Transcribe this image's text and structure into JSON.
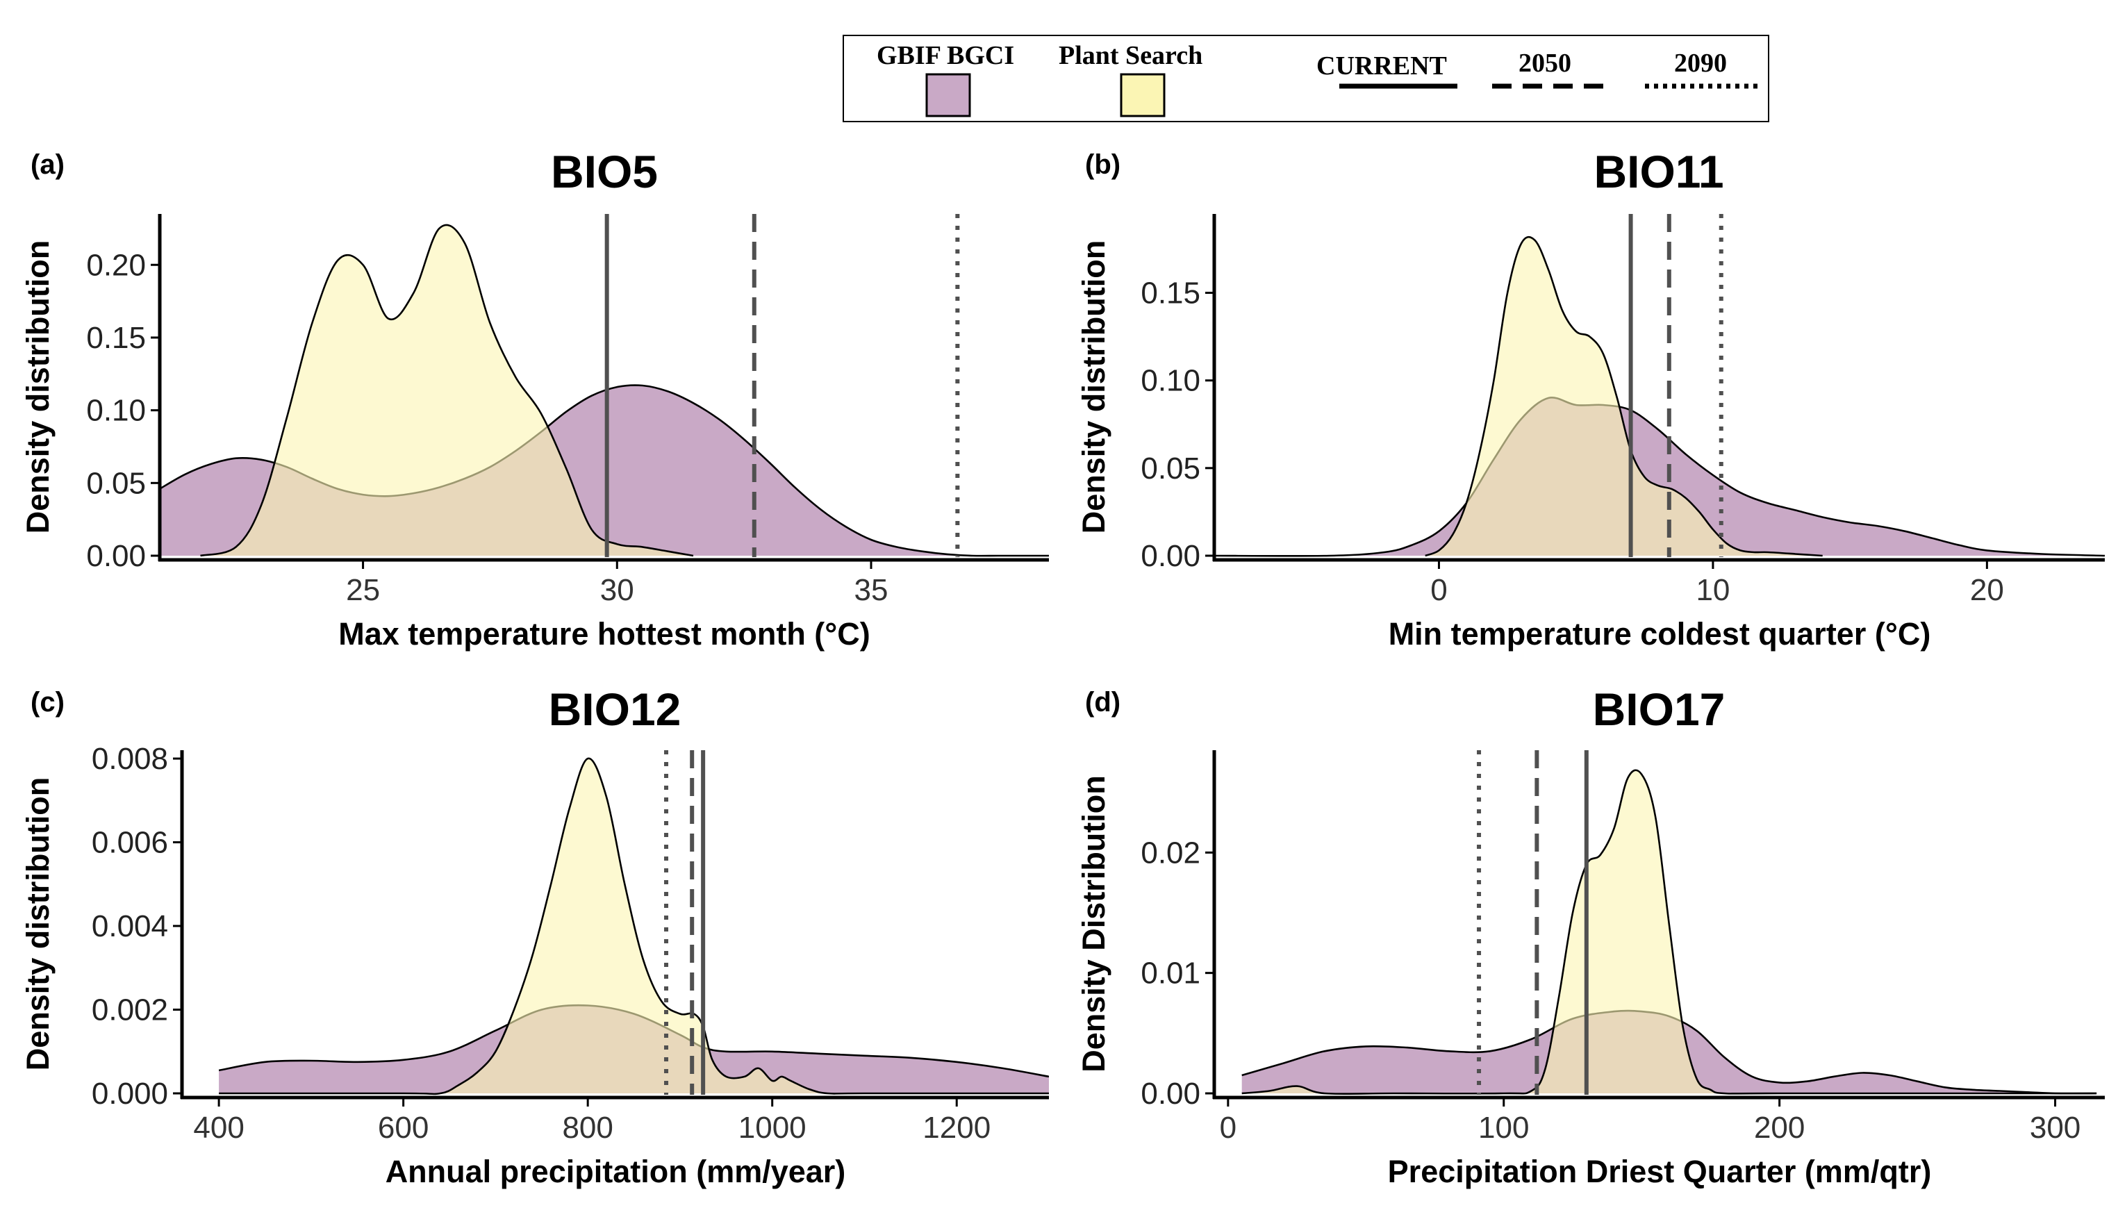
{
  "colors": {
    "gbif_fill": "#c9a9c6",
    "plant_fill": "#fbf5b4",
    "overlap_fill": "#dcbd92",
    "outline": "#000000",
    "vline": "#505050",
    "axis": "#000000"
  },
  "legend": {
    "gbif_label": "GBIF BGCI",
    "plant_label": "Plant Search",
    "current_label": "CURRENT",
    "y2050_label": "2050",
    "y2090_label": "2090"
  },
  "chart_data": [
    {
      "type": "area",
      "panel_label": "(a)",
      "title": "BIO5",
      "xlabel": "Max temperature hottest month (°C)",
      "ylabel": "Density distribution",
      "xlim": [
        21.0,
        38.5
      ],
      "ylim": [
        0,
        0.235
      ],
      "xticks": [
        25,
        30,
        35
      ],
      "xtick_labels": [
        "25",
        "30",
        "35"
      ],
      "yticks": [
        0.0,
        0.05,
        0.1,
        0.15,
        0.2
      ],
      "ytick_labels": [
        "0.00",
        "0.05",
        "0.10",
        "0.15",
        "0.20"
      ],
      "vlines": {
        "current": 29.8,
        "y2050": 32.7,
        "y2090": 36.7
      },
      "series": [
        {
          "name": "GBIF BGCI",
          "x": [
            21.0,
            21.5,
            22.0,
            22.5,
            23.0,
            23.5,
            24.0,
            24.5,
            25.0,
            25.5,
            26.0,
            26.5,
            27.0,
            27.5,
            28.0,
            28.5,
            29.0,
            29.5,
            30.0,
            30.5,
            31.0,
            31.5,
            32.0,
            32.5,
            33.0,
            33.5,
            34.0,
            34.5,
            35.0,
            35.5,
            36.0,
            36.5,
            37.0,
            37.5,
            38.0,
            38.5
          ],
          "y": [
            0.046,
            0.056,
            0.063,
            0.067,
            0.066,
            0.061,
            0.053,
            0.046,
            0.042,
            0.041,
            0.043,
            0.047,
            0.053,
            0.061,
            0.072,
            0.085,
            0.099,
            0.11,
            0.116,
            0.117,
            0.113,
            0.105,
            0.094,
            0.08,
            0.064,
            0.047,
            0.032,
            0.02,
            0.011,
            0.006,
            0.003,
            0.001,
            0.0,
            0.0,
            0.0,
            0.0
          ]
        },
        {
          "name": "Plant Search",
          "x": [
            21.8,
            22.5,
            23.0,
            23.5,
            24.0,
            24.5,
            25.0,
            25.5,
            26.0,
            26.5,
            27.0,
            27.5,
            28.0,
            28.5,
            29.0,
            29.5,
            30.0,
            30.5,
            31.0,
            31.5
          ],
          "y": [
            0.0,
            0.006,
            0.035,
            0.095,
            0.16,
            0.203,
            0.2,
            0.163,
            0.181,
            0.225,
            0.215,
            0.16,
            0.123,
            0.098,
            0.06,
            0.018,
            0.008,
            0.006,
            0.003,
            0.0
          ]
        }
      ]
    },
    {
      "type": "area",
      "panel_label": "(b)",
      "title": "BIO11",
      "xlabel": "Min temperature coldest quarter (°C)",
      "ylabel": "Density distribution",
      "xlim": [
        -8.2,
        24.3
      ],
      "ylim": [
        0,
        0.195
      ],
      "xticks": [
        0,
        10,
        20
      ],
      "xtick_labels": [
        "0",
        "10",
        "20"
      ],
      "yticks": [
        0.0,
        0.05,
        0.1,
        0.15
      ],
      "ytick_labels": [
        "0.00",
        "0.05",
        "0.10",
        "0.15"
      ],
      "vlines": {
        "current": 7.0,
        "y2050": 8.4,
        "y2090": 10.3
      },
      "series": [
        {
          "name": "GBIF BGCI",
          "x": [
            -8.2,
            -4,
            -2,
            -1,
            0,
            1,
            2,
            3,
            4,
            5,
            6,
            7,
            8,
            9,
            10,
            11,
            12,
            13,
            14,
            15,
            16,
            17,
            18,
            19,
            20,
            22,
            24.3
          ],
          "y": [
            0.0,
            0.0,
            0.002,
            0.006,
            0.014,
            0.03,
            0.055,
            0.078,
            0.09,
            0.086,
            0.086,
            0.083,
            0.072,
            0.058,
            0.046,
            0.036,
            0.03,
            0.026,
            0.022,
            0.019,
            0.017,
            0.014,
            0.01,
            0.006,
            0.003,
            0.001,
            0.0
          ]
        },
        {
          "name": "Plant Search",
          "x": [
            -0.5,
            0,
            0.5,
            1,
            1.5,
            2,
            2.5,
            3,
            3.5,
            4,
            4.5,
            5,
            5.5,
            6,
            6.5,
            7,
            7.5,
            8,
            8.5,
            9,
            9.5,
            10,
            10.5,
            11,
            11.5,
            12,
            13,
            14
          ],
          "y": [
            0.0,
            0.003,
            0.012,
            0.03,
            0.06,
            0.1,
            0.15,
            0.178,
            0.18,
            0.163,
            0.14,
            0.128,
            0.125,
            0.115,
            0.09,
            0.06,
            0.045,
            0.04,
            0.038,
            0.033,
            0.025,
            0.015,
            0.007,
            0.003,
            0.002,
            0.002,
            0.001,
            0.0
          ]
        }
      ]
    },
    {
      "type": "area",
      "panel_label": "(c)",
      "title": "BIO12",
      "xlabel": "Annual precipitation (mm/year)",
      "ylabel": "Density distribution",
      "xlim": [
        360,
        1300
      ],
      "ylim": [
        0,
        0.0082
      ],
      "xticks": [
        400,
        600,
        800,
        1000,
        1200
      ],
      "xtick_labels": [
        "400",
        "600",
        "800",
        "1000",
        "1200"
      ],
      "yticks": [
        0.0,
        0.002,
        0.004,
        0.006,
        0.008
      ],
      "ytick_labels": [
        "0.000",
        "0.002",
        "0.004",
        "0.006",
        "0.008"
      ],
      "vlines": {
        "current": 925,
        "y2050": 913,
        "y2090": 885
      },
      "series": [
        {
          "name": "GBIF BGCI",
          "x": [
            400,
            450,
            500,
            550,
            600,
            650,
            700,
            750,
            800,
            850,
            900,
            925,
            950,
            1000,
            1050,
            1100,
            1150,
            1200,
            1250,
            1300
          ],
          "y": [
            0.00055,
            0.00075,
            0.00078,
            0.00075,
            0.0008,
            0.001,
            0.0015,
            0.002,
            0.0021,
            0.0019,
            0.0014,
            0.0011,
            0.001,
            0.001,
            0.00095,
            0.0009,
            0.00085,
            0.00075,
            0.0006,
            0.0004
          ]
        },
        {
          "name": "Plant Search",
          "x": [
            400,
            600,
            640,
            660,
            680,
            700,
            720,
            740,
            760,
            780,
            800,
            820,
            840,
            860,
            880,
            900,
            915,
            925,
            935,
            950,
            970,
            985,
            1000,
            1010,
            1020,
            1040,
            1060,
            1100,
            1300
          ],
          "y": [
            0.0,
            0.0,
            0.0,
            0.0002,
            0.0005,
            0.001,
            0.002,
            0.0033,
            0.005,
            0.0068,
            0.008,
            0.0071,
            0.005,
            0.0032,
            0.0022,
            0.0019,
            0.0019,
            0.0016,
            0.0008,
            0.0004,
            0.0004,
            0.0006,
            0.0003,
            0.0004,
            0.0003,
            0.0001,
            0.0,
            0.0,
            0.0
          ]
        }
      ]
    },
    {
      "type": "area",
      "panel_label": "(d)",
      "title": "BIO17",
      "xlabel": "Precipitation Driest Quarter (mm/qtr)",
      "ylabel": "Density Distribution",
      "xlim": [
        -5,
        318
      ],
      "ylim": [
        0,
        0.0285
      ],
      "xticks": [
        0,
        100,
        200,
        300
      ],
      "xtick_labels": [
        "0",
        "100",
        "200",
        "300"
      ],
      "yticks": [
        0.0,
        0.01,
        0.02
      ],
      "ytick_labels": [
        "0.00",
        "0.01",
        "0.02"
      ],
      "vlines": {
        "current": 130,
        "y2050": 112,
        "y2090": 91
      },
      "series": [
        {
          "name": "GBIF BGCI",
          "x": [
            5,
            20,
            35,
            50,
            65,
            80,
            95,
            110,
            125,
            140,
            150,
            160,
            170,
            180,
            190,
            200,
            210,
            220,
            230,
            240,
            250,
            260,
            270,
            280,
            290,
            300,
            315
          ],
          "y": [
            0.0015,
            0.0025,
            0.0035,
            0.0039,
            0.0038,
            0.0035,
            0.0035,
            0.0045,
            0.0062,
            0.0068,
            0.0068,
            0.0064,
            0.0052,
            0.003,
            0.0014,
            0.0009,
            0.001,
            0.0014,
            0.0017,
            0.0015,
            0.001,
            0.0005,
            0.0003,
            0.0002,
            0.0001,
            0.0,
            0.0
          ]
        },
        {
          "name": "Plant Search",
          "x": [
            5,
            15,
            25,
            35,
            60,
            100,
            110,
            115,
            120,
            125,
            130,
            135,
            140,
            145,
            150,
            155,
            160,
            165,
            170,
            175,
            180,
            200,
            315
          ],
          "y": [
            0.0,
            0.0002,
            0.0006,
            0.0,
            0.0,
            0.0,
            0.0002,
            0.002,
            0.008,
            0.015,
            0.019,
            0.0198,
            0.022,
            0.0262,
            0.0265,
            0.023,
            0.014,
            0.0055,
            0.0012,
            0.0003,
            0.0,
            0.0,
            0.0
          ]
        }
      ]
    }
  ]
}
